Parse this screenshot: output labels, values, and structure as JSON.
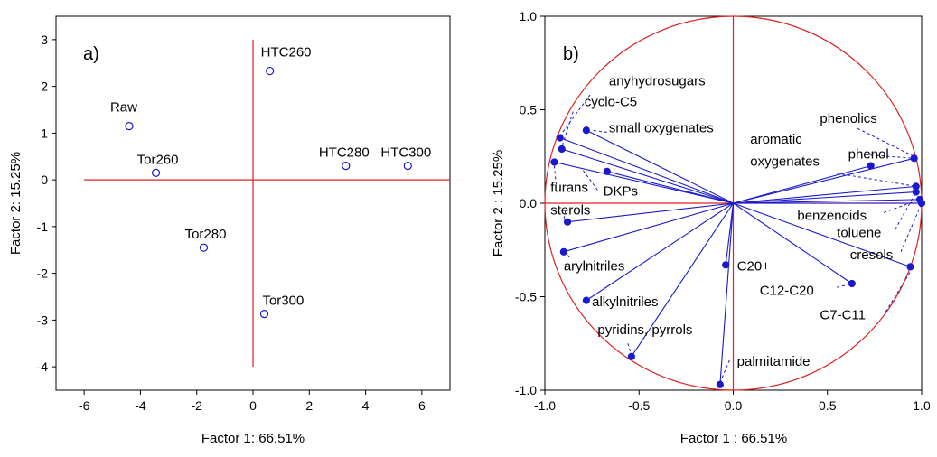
{
  "chart_data": [
    {
      "type": "scatter",
      "panel_label": "a)",
      "xlabel": "Factor 1: 66.51%",
      "ylabel": "Factor 2: 15.25%",
      "xlim": [
        -7,
        7
      ],
      "ylim": [
        -4.5,
        3.5
      ],
      "xticks": [
        "-6",
        "-4",
        "-2",
        "0",
        "2",
        "4",
        "6"
      ],
      "yticks": [
        "3",
        "2",
        "1",
        "0",
        "-1",
        "-2",
        "-3",
        "-4"
      ],
      "grid": false,
      "series": [
        {
          "points": [
            {
              "label": "Raw",
              "x": -4.4,
              "y": 1.15
            },
            {
              "label": "Tor260",
              "x": -3.45,
              "y": 0.15
            },
            {
              "label": "Tor280",
              "x": -1.75,
              "y": -1.45
            },
            {
              "label": "Tor300",
              "x": 0.4,
              "y": -2.87
            },
            {
              "label": "HTC260",
              "x": 0.6,
              "y": 2.33
            },
            {
              "label": "HTC280",
              "x": 3.3,
              "y": 0.3
            },
            {
              "label": "HTC300",
              "x": 5.5,
              "y": 0.3
            }
          ]
        }
      ],
      "colors": {
        "points": "#1a1acc",
        "axes_lines": "#e02020"
      }
    },
    {
      "type": "scatter",
      "subtype": "correlation-circle",
      "panel_label": "b)",
      "xlabel": "Factor 1 : 66.51%",
      "ylabel": "Factor 2 : 15.25%",
      "xlim": [
        -1.0,
        1.0
      ],
      "ylim": [
        -1.0,
        1.0
      ],
      "xticks": [
        "-1.0",
        "-0.5",
        "0.0",
        "0.5",
        "1.0"
      ],
      "yticks": [
        "1.0",
        "0.5",
        "0.0",
        "-0.5",
        "-1.0"
      ],
      "grid": false,
      "points": [
        {
          "x": -0.92,
          "y": 0.35
        },
        {
          "x": -0.78,
          "y": 0.39
        },
        {
          "x": -0.91,
          "y": 0.29
        },
        {
          "x": -0.95,
          "y": 0.22
        },
        {
          "x": -0.67,
          "y": 0.17
        },
        {
          "x": -0.88,
          "y": -0.1
        },
        {
          "x": -0.9,
          "y": -0.26
        },
        {
          "x": -0.78,
          "y": -0.52
        },
        {
          "x": -0.54,
          "y": -0.82
        },
        {
          "x": -0.07,
          "y": -0.97
        },
        {
          "x": -0.04,
          "y": -0.33
        },
        {
          "x": 0.63,
          "y": -0.43
        },
        {
          "x": 0.94,
          "y": -0.34
        },
        {
          "x": 0.96,
          "y": 0.24
        },
        {
          "x": 0.73,
          "y": 0.2
        },
        {
          "x": 0.97,
          "y": 0.09
        },
        {
          "x": 0.97,
          "y": 0.06
        },
        {
          "x": 0.99,
          "y": 0.02
        },
        {
          "x": 1.0,
          "y": 0.0
        }
      ],
      "labels": [
        {
          "text": "anyhydrosugars",
          "x": -0.66,
          "y": 0.63
        },
        {
          "text": "cyclo-C5",
          "x": -0.79,
          "y": 0.52
        },
        {
          "text": "small oxygenates",
          "x": -0.66,
          "y": 0.38
        },
        {
          "text": "aromatic",
          "x": 0.09,
          "y": 0.32
        },
        {
          "text": "oxygenates",
          "x": 0.09,
          "y": 0.2
        },
        {
          "text": "phenolics",
          "x": 0.46,
          "y": 0.43
        },
        {
          "text": "phenol",
          "x": 0.61,
          "y": 0.24
        },
        {
          "text": "furans",
          "x": -0.97,
          "y": 0.06
        },
        {
          "text": "DKPs",
          "x": -0.69,
          "y": 0.04
        },
        {
          "text": "sterols",
          "x": -0.97,
          "y": -0.06
        },
        {
          "text": "benzenoids",
          "x": 0.34,
          "y": -0.09
        },
        {
          "text": "toluene",
          "x": 0.55,
          "y": -0.18
        },
        {
          "text": "cresols",
          "x": 0.62,
          "y": -0.3
        },
        {
          "text": "arylnitriles",
          "x": -0.9,
          "y": -0.36
        },
        {
          "text": "C20+",
          "x": 0.02,
          "y": -0.36
        },
        {
          "text": "C12-C20",
          "x": 0.14,
          "y": -0.49
        },
        {
          "text": "alkylnitriles",
          "x": -0.75,
          "y": -0.55
        },
        {
          "text": "C7-C11",
          "x": 0.46,
          "y": -0.62
        },
        {
          "text": "pyridins, pyrrols",
          "x": -0.72,
          "y": -0.7
        },
        {
          "text": "palmitamide",
          "x": 0.02,
          "y": -0.87
        }
      ],
      "leaders": [
        {
          "from": [
            -0.76,
            0.58
          ],
          "to": [
            -0.92,
            0.36
          ]
        },
        {
          "from": [
            -0.85,
            0.49
          ],
          "to": [
            -0.91,
            0.3
          ]
        },
        {
          "from": [
            -0.67,
            0.38
          ],
          "to": [
            -0.75,
            0.39
          ]
        },
        {
          "from": [
            0.7,
            0.26
          ],
          "to": [
            0.96,
            0.24
          ]
        },
        {
          "from": [
            0.66,
            0.4
          ],
          "to": [
            0.96,
            0.25
          ]
        },
        {
          "from": [
            0.55,
            0.16
          ],
          "to": [
            0.97,
            0.09
          ]
        },
        {
          "from": [
            -0.94,
            0.1
          ],
          "to": [
            -0.95,
            0.2
          ]
        },
        {
          "from": [
            -0.72,
            0.07
          ],
          "to": [
            -0.8,
            0.18
          ]
        },
        {
          "from": [
            -0.89,
            -0.04
          ],
          "to": [
            -0.9,
            -0.09
          ]
        },
        {
          "from": [
            0.8,
            -0.05
          ],
          "to": [
            0.99,
            0.02
          ]
        },
        {
          "from": [
            0.86,
            -0.14
          ],
          "to": [
            0.97,
            0.06
          ]
        },
        {
          "from": [
            0.89,
            -0.26
          ],
          "to": [
            1.0,
            0.0
          ]
        },
        {
          "from": [
            -0.87,
            -0.29
          ],
          "to": [
            -0.89,
            -0.26
          ]
        },
        {
          "from": [
            0.55,
            -0.45
          ],
          "to": [
            0.63,
            -0.43
          ]
        },
        {
          "from": [
            0.81,
            -0.58
          ],
          "to": [
            0.95,
            -0.35
          ]
        },
        {
          "from": [
            -0.56,
            -0.75
          ],
          "to": [
            -0.54,
            -0.81
          ]
        },
        {
          "from": [
            -0.02,
            -0.84
          ],
          "to": [
            -0.07,
            -0.96
          ]
        }
      ],
      "colors": {
        "points": "#1a1acc",
        "circle_and_axes": "#e02020"
      }
    }
  ]
}
